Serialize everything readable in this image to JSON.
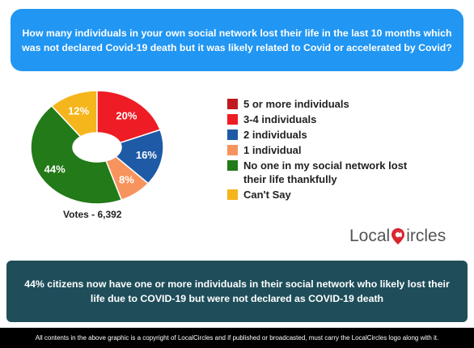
{
  "question": "How many individuals in your own social network lost their life in the last 10 months which was not declared Covid-19 death but it was likely related to Covid or accelerated by Covid?",
  "votes_label": "Votes - 6,392",
  "logo": {
    "part1": "Local",
    "part2": "ircles"
  },
  "finding": "44% citizens now have one or more individuals in their social network who likely lost their life due to COVID-19 but were not declared as COVID-19 death",
  "footer": "All contents in the above graphic is a copyright of LocalCircles and if published or broadcasted, must carry the LocalCircles logo along with it.",
  "colors": {
    "question_bg": "#2196f3",
    "finding_bg": "#1f4e5a",
    "logo_red": "#d9232d"
  },
  "chart_data": {
    "type": "pie",
    "donut": true,
    "legend_position": "right",
    "series": [
      {
        "name": "5 or more individuals",
        "value": 0,
        "label": "",
        "color": "#c0191f"
      },
      {
        "name": "3-4 individuals",
        "value": 20,
        "label": "20%",
        "color": "#ee1c24"
      },
      {
        "name": "2 individuals",
        "value": 16,
        "label": "16%",
        "color": "#1f5aa6"
      },
      {
        "name": "1 individual",
        "value": 8,
        "label": "8%",
        "color": "#f7945d"
      },
      {
        "name": "No one in my social network lost their life thankfully",
        "value": 44,
        "label": "44%",
        "color": "#237a18"
      },
      {
        "name": "Can't Say",
        "value": 12,
        "label": "12%",
        "color": "#f5b51c"
      }
    ]
  }
}
